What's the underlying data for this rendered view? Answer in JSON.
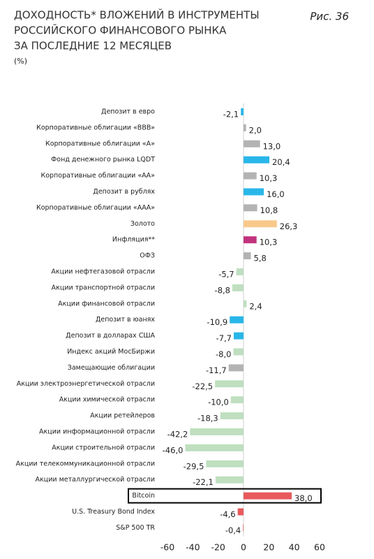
{
  "chart_data": {
    "type": "barh",
    "title": [
      "ДОХОДНОСТЬ* ВЛОЖЕНИЙ В ИНСТРУМЕНТЫ",
      "РОССИЙСКОГО ФИНАНСОВОГО РЫНКА",
      "ЗА ПОСЛЕДНИЕ 12 МЕСЯЦЕВ"
    ],
    "subtitle": "(%)",
    "figure_label": "Рис. 36",
    "categories": [
      "Депозит в евро",
      "Корпоративные облигации «BBB»",
      "Корпоративные облигации «А»",
      "Фонд денежного рынка LQDT",
      "Корпоративные облигации «АА»",
      "Депозит в рублях",
      "Корпоративные облигации «ААА»",
      "Золото",
      "Инфляция**",
      "ОФЗ",
      "Акции нефтегазовой отрасли",
      "Акции транспортной отрасли",
      "Акции финансовой отрасли",
      "Депозит в юанях",
      "Депозит в долларах США",
      "Индекс акций МосБиржи",
      "Замещающие облигации",
      "Акции электроэнергетической отрасли",
      "Акции химической отрасли",
      "Акции ретейлеров",
      "Акции информационной отрасли",
      "Акции строительной отрасли",
      "Акции телекоммуникационной отрасли",
      "Акции металлургической отрасли",
      "Bitcoin",
      "U.S. Treasury Bond Index",
      "S&P 500 TR"
    ],
    "values": [
      -2.1,
      2.0,
      13.0,
      20.4,
      10.3,
      16.0,
      10.8,
      26.3,
      10.3,
      5.8,
      -5.7,
      -8.8,
      2.4,
      -10.9,
      -7.7,
      -8.0,
      -11.7,
      -22.5,
      -10.0,
      -18.3,
      -42.2,
      -46.0,
      -29.5,
      -22.1,
      38.0,
      -4.6,
      -0.4
    ],
    "value_labels": [
      "-2,1",
      "2,0",
      "13,0",
      "20,4",
      "10,3",
      "16,0",
      "10,8",
      "26,3",
      "10,3",
      "5,8",
      "-5,7",
      "-8,8",
      "2,4",
      "-10,9",
      "-7,7",
      "-8,0",
      "-11,7",
      "-22,5",
      "-10,0",
      "-18,3",
      "-42,2",
      "-46,0",
      "-29,5",
      "-22,1",
      "38,0",
      "-4,6",
      "-0,4"
    ],
    "colors": [
      "#29b6e8",
      "#b3b3b3",
      "#b3b3b3",
      "#29b6e8",
      "#b3b3b3",
      "#29b6e8",
      "#b3b3b3",
      "#f8c98b",
      "#c2337d",
      "#b3b3b3",
      "#bfdfbf",
      "#bfdfbf",
      "#bfdfbf",
      "#29b6e8",
      "#29b6e8",
      "#bfdfbf",
      "#b3b3b3",
      "#bfdfbf",
      "#bfdfbf",
      "#bfdfbf",
      "#bfdfbf",
      "#bfdfbf",
      "#bfdfbf",
      "#bfdfbf",
      "#e85a5c",
      "#e85a5c",
      "#e85a5c"
    ],
    "highlight": "Bitcoin",
    "xlim": [
      -60,
      60
    ],
    "xticks": [
      -60,
      -40,
      -20,
      0,
      20,
      40,
      60
    ]
  }
}
